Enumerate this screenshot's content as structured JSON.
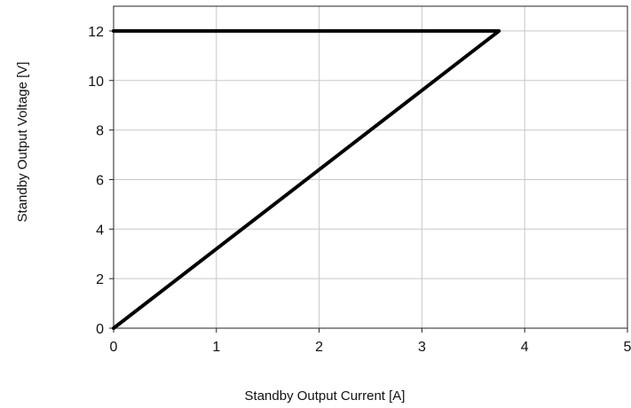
{
  "chart_data": {
    "type": "line",
    "xlabel": "Standby Output Current [A]",
    "ylabel": "Standby Output Voltage [V]",
    "xlim": [
      0,
      5
    ],
    "ylim": [
      0,
      13
    ],
    "xticks": [
      "0",
      "1",
      "2",
      "3",
      "4",
      "5"
    ],
    "yticks": [
      "0",
      "2",
      "4",
      "6",
      "8",
      "10",
      "12"
    ],
    "grid": true,
    "legend": "none",
    "series": [
      {
        "color": "#000000",
        "x": [
          0,
          3.75,
          3.75,
          0
        ],
        "y": [
          0,
          12,
          12,
          12
        ]
      }
    ]
  }
}
